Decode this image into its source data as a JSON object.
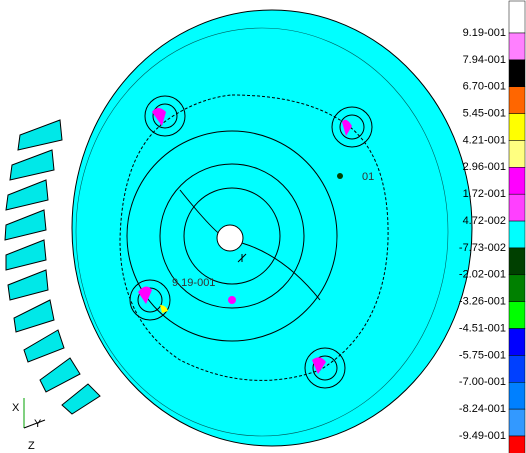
{
  "legend": {
    "labels": [
      "9.19-001",
      "7.94-001",
      "6.70-001",
      "5.45-001",
      "4.21-001",
      "2.96-001",
      "1.72-001",
      "4.72-002",
      "-7.73-002",
      "-2.02-001",
      "-3.26-001",
      "-4.51-001",
      "-5.75-001",
      "-7.00-001",
      "-8.24-001",
      "-9.49-001"
    ],
    "colors": [
      "#ff80ff",
      "#000000",
      "#ff6600",
      "#ffff00",
      "#ffff80",
      "#ff00ff",
      "#ff40ff",
      "#00ffff",
      "#004000",
      "#008000",
      "#00ff00",
      "#0000ff",
      "#0040ff",
      "#0080ff",
      "#3399ff",
      "#ff0000"
    ]
  },
  "annotations": [
    "9.19-001",
    "01"
  ],
  "axes": [
    "X",
    "Y",
    "Z"
  ]
}
